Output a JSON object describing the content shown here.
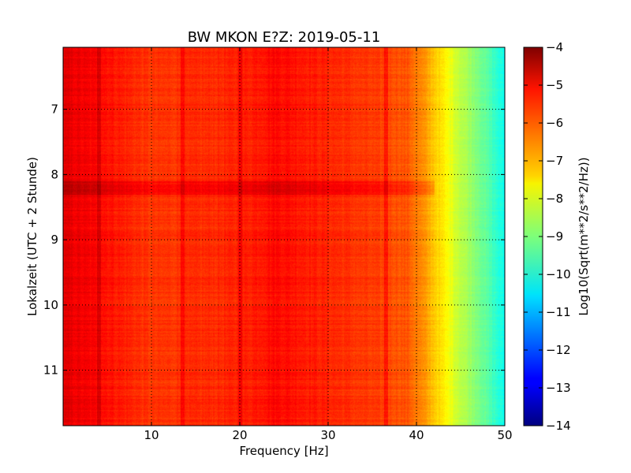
{
  "chart_data": {
    "type": "heatmap",
    "title": "BW MKON E?Z: 2019-05-11",
    "xlabel": "Frequency [Hz]",
    "ylabel": "Lokalzeit (UTC + 2 Stunde)",
    "xlim": [
      0,
      50
    ],
    "ylim": [
      11.85,
      6.05
    ],
    "x_ticks": [
      10,
      20,
      30,
      40,
      50
    ],
    "y_ticks": [
      7,
      8,
      9,
      10,
      11
    ],
    "grid": true,
    "colormap": "jet",
    "colorbar": {
      "label": "Log10(Sqrt(m**2/s**2/Hz))",
      "min": -14,
      "max": -4,
      "ticks": [
        -4,
        -5,
        -6,
        -7,
        -8,
        -9,
        -10,
        -11,
        -12,
        -13,
        -14
      ]
    },
    "spectral_profile": {
      "frequency_hz": [
        0,
        4,
        10,
        20,
        24,
        30,
        36,
        39,
        41,
        43,
        45,
        47,
        49,
        50
      ],
      "log10_amplitude": [
        -5.0,
        -5.3,
        -5.8,
        -5.6,
        -5.3,
        -5.6,
        -5.9,
        -6.1,
        -6.8,
        -7.6,
        -8.4,
        -9.0,
        -9.8,
        -10.2
      ]
    },
    "spectral_lines_hz": [
      4.0,
      13.5,
      20.0,
      36.5
    ],
    "elevated_time_band": [
      8.1,
      8.3
    ]
  }
}
